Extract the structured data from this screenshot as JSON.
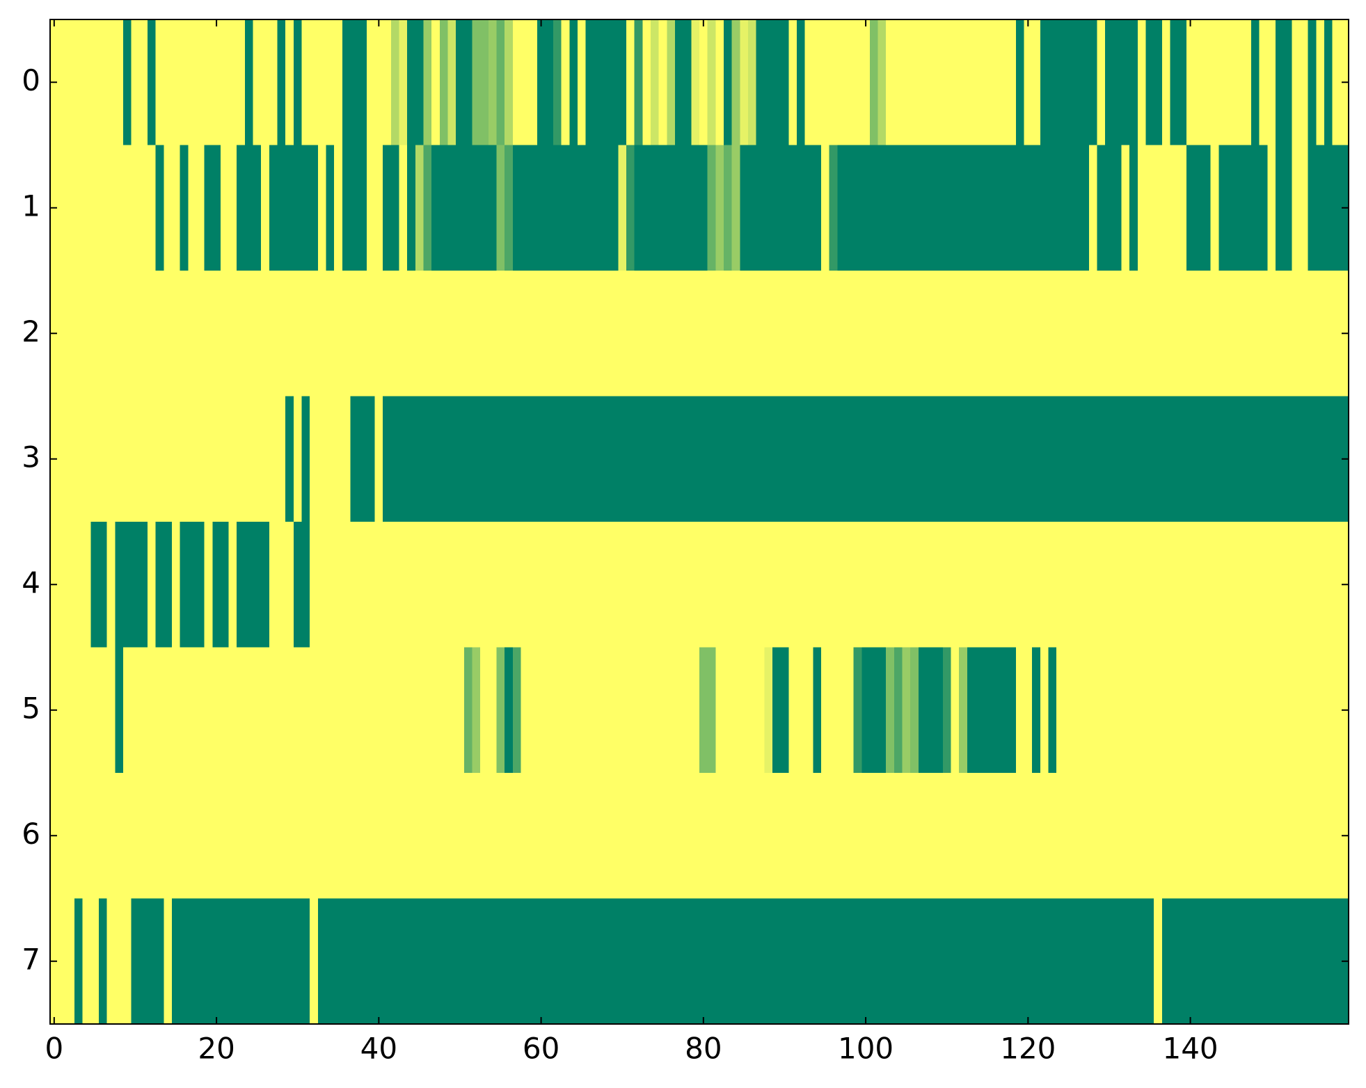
{
  "chart_data": {
    "type": "heatmap",
    "colormap": [
      "#008066",
      "#ffff66"
    ],
    "xlim": [
      -0.5,
      159.5
    ],
    "xticks": [
      0,
      20,
      40,
      60,
      80,
      100,
      120,
      140
    ],
    "ylim": [
      7.5,
      -0.5
    ],
    "yticks": [
      0,
      1,
      2,
      3,
      4,
      5,
      6,
      7
    ],
    "values": [
      [
        1,
        1,
        1,
        1,
        1,
        1,
        1,
        1,
        1,
        0,
        1,
        1,
        0,
        1,
        1,
        1,
        1,
        1,
        1,
        1,
        1,
        1,
        1,
        1,
        0,
        1,
        1,
        1,
        0,
        1,
        0,
        1,
        1,
        1,
        1,
        1,
        0,
        0,
        0,
        1,
        1,
        1,
        0.7,
        0.9,
        0,
        0,
        0.6,
        1,
        0.5,
        0.8,
        0,
        0,
        0.5,
        0.5,
        0.6,
        0.4,
        0.7,
        1,
        1,
        1,
        0,
        0,
        0.2,
        1,
        0,
        1,
        0,
        0,
        0,
        0,
        0,
        1,
        0.2,
        1,
        0.8,
        1,
        0.7,
        0,
        0,
        0.9,
        1,
        0.8,
        1,
        0,
        0.6,
        0.9,
        0.8,
        0,
        0,
        0,
        0,
        1,
        0,
        1,
        1,
        1,
        1,
        1,
        1,
        1,
        1,
        0.5,
        0.7,
        1,
        1,
        1,
        1,
        1,
        1,
        1,
        1,
        1,
        1,
        1,
        1,
        1,
        1,
        1,
        1,
        0,
        1,
        1,
        0,
        0,
        0,
        0,
        0,
        0,
        0,
        1,
        0,
        0,
        0,
        0,
        1,
        0,
        0,
        1,
        0,
        0,
        1,
        1,
        1,
        1,
        1,
        1,
        1,
        1,
        0,
        1,
        1,
        0,
        0,
        1,
        1,
        0,
        1,
        0,
        1,
        1
      ],
      [
        1,
        1,
        1,
        1,
        1,
        1,
        1,
        1,
        1,
        1,
        1,
        1,
        1,
        0,
        1,
        1,
        0,
        1,
        1,
        0,
        0,
        1,
        1,
        0,
        0,
        0,
        1,
        0,
        0,
        0,
        0,
        0,
        0,
        1,
        0,
        1,
        0,
        0,
        0,
        1,
        1,
        0,
        0,
        1,
        0,
        0.7,
        0.3,
        0,
        0,
        0,
        0,
        0,
        0,
        0,
        0,
        0.5,
        0.3,
        0,
        0,
        0,
        0,
        0,
        0,
        0,
        0,
        0,
        0,
        0,
        0,
        0,
        0.9,
        0.2,
        0,
        0,
        0,
        0,
        0,
        0,
        0,
        0,
        0,
        0.4,
        0.6,
        0.4,
        0.6,
        0,
        0,
        0,
        0,
        0,
        0,
        0,
        0,
        0,
        0,
        1,
        0.2,
        0,
        0,
        0,
        0,
        0,
        0,
        0,
        0,
        0,
        0,
        0,
        0,
        0,
        0,
        0,
        0,
        0,
        0,
        0,
        0,
        0,
        0,
        0,
        0,
        0,
        0,
        0,
        0,
        0,
        0,
        0,
        1,
        0,
        0,
        0,
        1,
        0,
        1,
        1,
        1,
        1,
        1,
        1,
        0,
        0,
        0,
        1,
        0,
        0,
        0,
        0,
        0,
        0,
        1,
        0,
        0,
        1,
        1,
        0,
        0,
        0,
        0,
        0
      ],
      [
        1,
        1,
        1,
        1,
        1,
        1,
        1,
        1,
        1,
        1,
        1,
        1,
        1,
        1,
        1,
        1,
        1,
        1,
        1,
        1,
        1,
        1,
        1,
        1,
        1,
        1,
        1,
        1,
        1,
        1,
        1,
        1,
        1,
        1,
        1,
        1,
        1,
        1,
        1,
        1,
        1,
        1,
        1,
        1,
        1,
        1,
        1,
        1,
        1,
        1,
        1,
        1,
        1,
        1,
        1,
        1,
        1,
        1,
        1,
        1,
        1,
        1,
        1,
        1,
        1,
        1,
        1,
        1,
        1,
        1,
        1,
        1,
        1,
        1,
        1,
        1,
        1,
        1,
        1,
        1,
        1,
        1,
        1,
        1,
        1,
        1,
        1,
        1,
        1,
        1,
        1,
        1,
        1,
        1,
        1,
        1,
        1,
        1,
        1,
        1,
        1,
        1,
        1,
        1,
        1,
        1,
        1,
        1,
        1,
        1,
        1,
        1,
        1,
        1,
        1,
        1,
        1,
        1,
        1,
        1,
        1,
        1,
        1,
        1,
        1,
        1,
        1,
        1,
        1,
        1,
        1,
        1,
        1,
        1,
        1,
        1,
        1,
        1,
        1,
        1,
        1,
        1,
        1,
        1,
        1,
        1,
        1,
        1,
        1,
        1,
        1,
        1,
        1,
        1,
        1,
        1,
        1,
        1,
        1,
        1
      ],
      [
        1,
        1,
        1,
        1,
        1,
        1,
        1,
        1,
        1,
        1,
        1,
        1,
        1,
        1,
        1,
        1,
        1,
        1,
        1,
        1,
        1,
        1,
        1,
        1,
        1,
        1,
        1,
        1,
        1,
        0,
        1,
        0,
        1,
        1,
        1,
        1,
        1,
        0,
        0,
        0,
        1,
        0,
        0,
        0,
        0,
        0,
        0,
        0,
        0,
        0,
        0,
        0,
        0,
        0,
        0,
        0,
        0,
        0,
        0,
        0,
        0,
        0,
        0,
        0,
        0,
        0,
        0,
        0,
        0,
        0,
        0,
        0,
        0,
        0,
        0,
        0,
        0,
        0,
        0,
        0,
        0,
        0,
        0,
        0,
        0,
        0,
        0,
        0,
        0,
        0,
        0,
        0,
        0,
        0,
        0,
        0,
        0,
        0,
        0,
        0,
        0,
        0,
        0,
        0,
        0,
        0,
        0,
        0,
        0,
        0,
        0,
        0,
        0,
        0,
        0,
        0,
        0,
        0,
        0,
        0,
        0,
        0,
        0,
        0,
        0,
        0,
        0,
        0,
        0,
        0,
        0,
        0,
        0,
        0,
        0,
        0,
        0,
        0,
        0,
        0,
        0,
        0,
        0,
        0,
        0,
        0,
        0,
        0,
        0,
        0,
        0,
        0,
        0,
        0,
        0,
        0,
        0,
        0,
        0,
        0
      ],
      [
        1,
        1,
        1,
        1,
        1,
        0,
        0,
        1,
        0,
        0,
        0,
        0,
        1,
        0,
        0,
        1,
        0,
        0,
        0,
        1,
        0,
        0,
        1,
        0,
        0,
        0,
        0,
        1,
        1,
        1,
        0,
        0,
        1,
        1,
        1,
        1,
        1,
        1,
        1,
        1,
        1,
        1,
        1,
        1,
        1,
        1,
        1,
        1,
        1,
        1,
        1,
        1,
        1,
        1,
        1,
        1,
        1,
        1,
        1,
        1,
        1,
        1,
        1,
        1,
        1,
        1,
        1,
        1,
        1,
        1,
        1,
        1,
        1,
        1,
        1,
        1,
        1,
        1,
        1,
        1,
        1,
        1,
        1,
        1,
        1,
        1,
        1,
        1,
        1,
        1,
        1,
        1,
        1,
        1,
        1,
        1,
        1,
        1,
        1,
        1,
        1,
        1,
        1,
        1,
        1,
        1,
        1,
        1,
        1,
        1,
        1,
        1,
        1,
        1,
        1,
        1,
        1,
        1,
        1,
        1,
        1,
        1,
        1,
        1,
        1,
        1,
        1,
        1,
        1,
        1,
        1,
        1,
        1,
        1,
        1,
        1,
        1,
        1,
        1,
        1,
        1,
        1,
        1,
        1,
        1,
        1,
        1,
        1,
        1,
        1,
        1,
        1,
        1,
        1,
        1,
        1,
        1,
        1,
        1,
        1
      ],
      [
        1,
        1,
        1,
        1,
        1,
        1,
        1,
        1,
        0,
        1,
        1,
        1,
        1,
        1,
        1,
        1,
        1,
        1,
        1,
        1,
        1,
        1,
        1,
        1,
        1,
        1,
        1,
        1,
        1,
        1,
        1,
        1,
        1,
        1,
        1,
        1,
        1,
        1,
        1,
        1,
        1,
        1,
        1,
        1,
        1,
        1,
        1,
        1,
        1,
        1,
        1,
        0.4,
        0.6,
        1,
        1,
        0.5,
        0,
        0.3,
        1,
        1,
        1,
        1,
        1,
        1,
        1,
        1,
        1,
        1,
        1,
        1,
        1,
        1,
        1,
        1,
        1,
        1,
        1,
        1,
        1,
        1,
        0.5,
        0.5,
        1,
        1,
        1,
        1,
        1,
        1,
        0.9,
        0,
        0,
        1,
        1,
        1,
        0,
        1,
        1,
        1,
        1,
        0.2,
        0,
        0,
        0,
        0.5,
        0.3,
        0.6,
        0.5,
        0,
        0,
        0,
        0.2,
        1,
        0.6,
        0,
        0,
        0,
        0,
        0,
        0,
        1,
        1,
        0,
        1,
        0,
        1,
        1,
        1,
        1,
        1,
        1,
        1,
        1,
        1,
        1,
        1,
        1,
        1,
        1,
        1,
        1,
        1,
        1,
        1,
        1,
        1,
        1,
        1,
        1,
        1,
        1,
        1,
        1,
        1,
        1,
        1,
        1,
        1,
        1,
        1,
        1
      ],
      [
        1,
        1,
        1,
        1,
        1,
        1,
        1,
        1,
        1,
        1,
        1,
        1,
        1,
        1,
        1,
        1,
        1,
        1,
        1,
        1,
        1,
        1,
        1,
        1,
        1,
        1,
        1,
        1,
        1,
        1,
        1,
        1,
        1,
        1,
        1,
        1,
        1,
        1,
        1,
        1,
        1,
        1,
        1,
        1,
        1,
        1,
        1,
        1,
        1,
        1,
        1,
        1,
        1,
        1,
        1,
        1,
        1,
        1,
        1,
        1,
        1,
        1,
        1,
        1,
        1,
        1,
        1,
        1,
        1,
        1,
        1,
        1,
        1,
        1,
        1,
        1,
        1,
        1,
        1,
        1,
        1,
        1,
        1,
        1,
        1,
        1,
        1,
        1,
        1,
        1,
        1,
        1,
        1,
        1,
        1,
        1,
        1,
        1,
        1,
        1,
        1,
        1,
        1,
        1,
        1,
        1,
        1,
        1,
        1,
        1,
        1,
        1,
        1,
        1,
        1,
        1,
        1,
        1,
        1,
        1,
        1,
        1,
        1,
        1,
        1,
        1,
        1,
        1,
        1,
        1,
        1,
        1,
        1,
        1,
        1,
        1,
        1,
        1,
        1,
        1,
        1,
        1,
        1,
        1,
        1,
        1,
        1,
        1,
        1,
        1,
        1,
        1,
        1,
        1,
        1,
        1,
        1,
        1,
        1,
        1
      ],
      [
        1,
        1,
        1,
        0,
        1,
        1,
        0,
        1,
        1,
        1,
        0,
        0,
        0,
        0,
        1,
        0,
        0,
        0,
        0,
        0,
        0,
        0,
        0,
        0,
        0,
        0,
        0,
        0,
        0,
        0,
        0,
        0,
        1,
        0,
        0,
        0,
        0,
        0,
        0,
        0,
        0,
        0,
        0,
        0,
        0,
        0,
        0,
        0,
        0,
        0,
        0,
        0,
        0,
        0,
        0,
        0,
        0,
        0,
        0,
        0,
        0,
        0,
        0,
        0,
        0,
        0,
        0,
        0,
        0,
        0,
        0,
        0,
        0,
        0,
        0,
        0,
        0,
        0,
        0,
        0,
        0,
        0,
        0,
        0,
        0,
        0,
        0,
        0,
        0,
        0,
        0,
        0,
        0,
        0,
        0,
        0,
        0,
        0,
        0,
        0,
        0,
        0,
        0,
        0,
        0,
        0,
        0,
        0,
        0,
        0,
        0,
        0,
        0,
        0,
        0,
        0,
        0,
        0,
        0,
        0,
        0,
        0,
        0,
        0,
        0,
        0,
        0,
        0,
        0,
        0,
        0,
        0,
        0,
        0,
        0,
        0,
        1,
        0,
        0,
        0,
        0,
        0,
        0,
        0,
        0,
        0,
        0,
        0,
        0,
        0,
        0,
        0,
        0,
        0,
        0,
        0,
        0,
        0,
        0,
        0
      ]
    ]
  }
}
